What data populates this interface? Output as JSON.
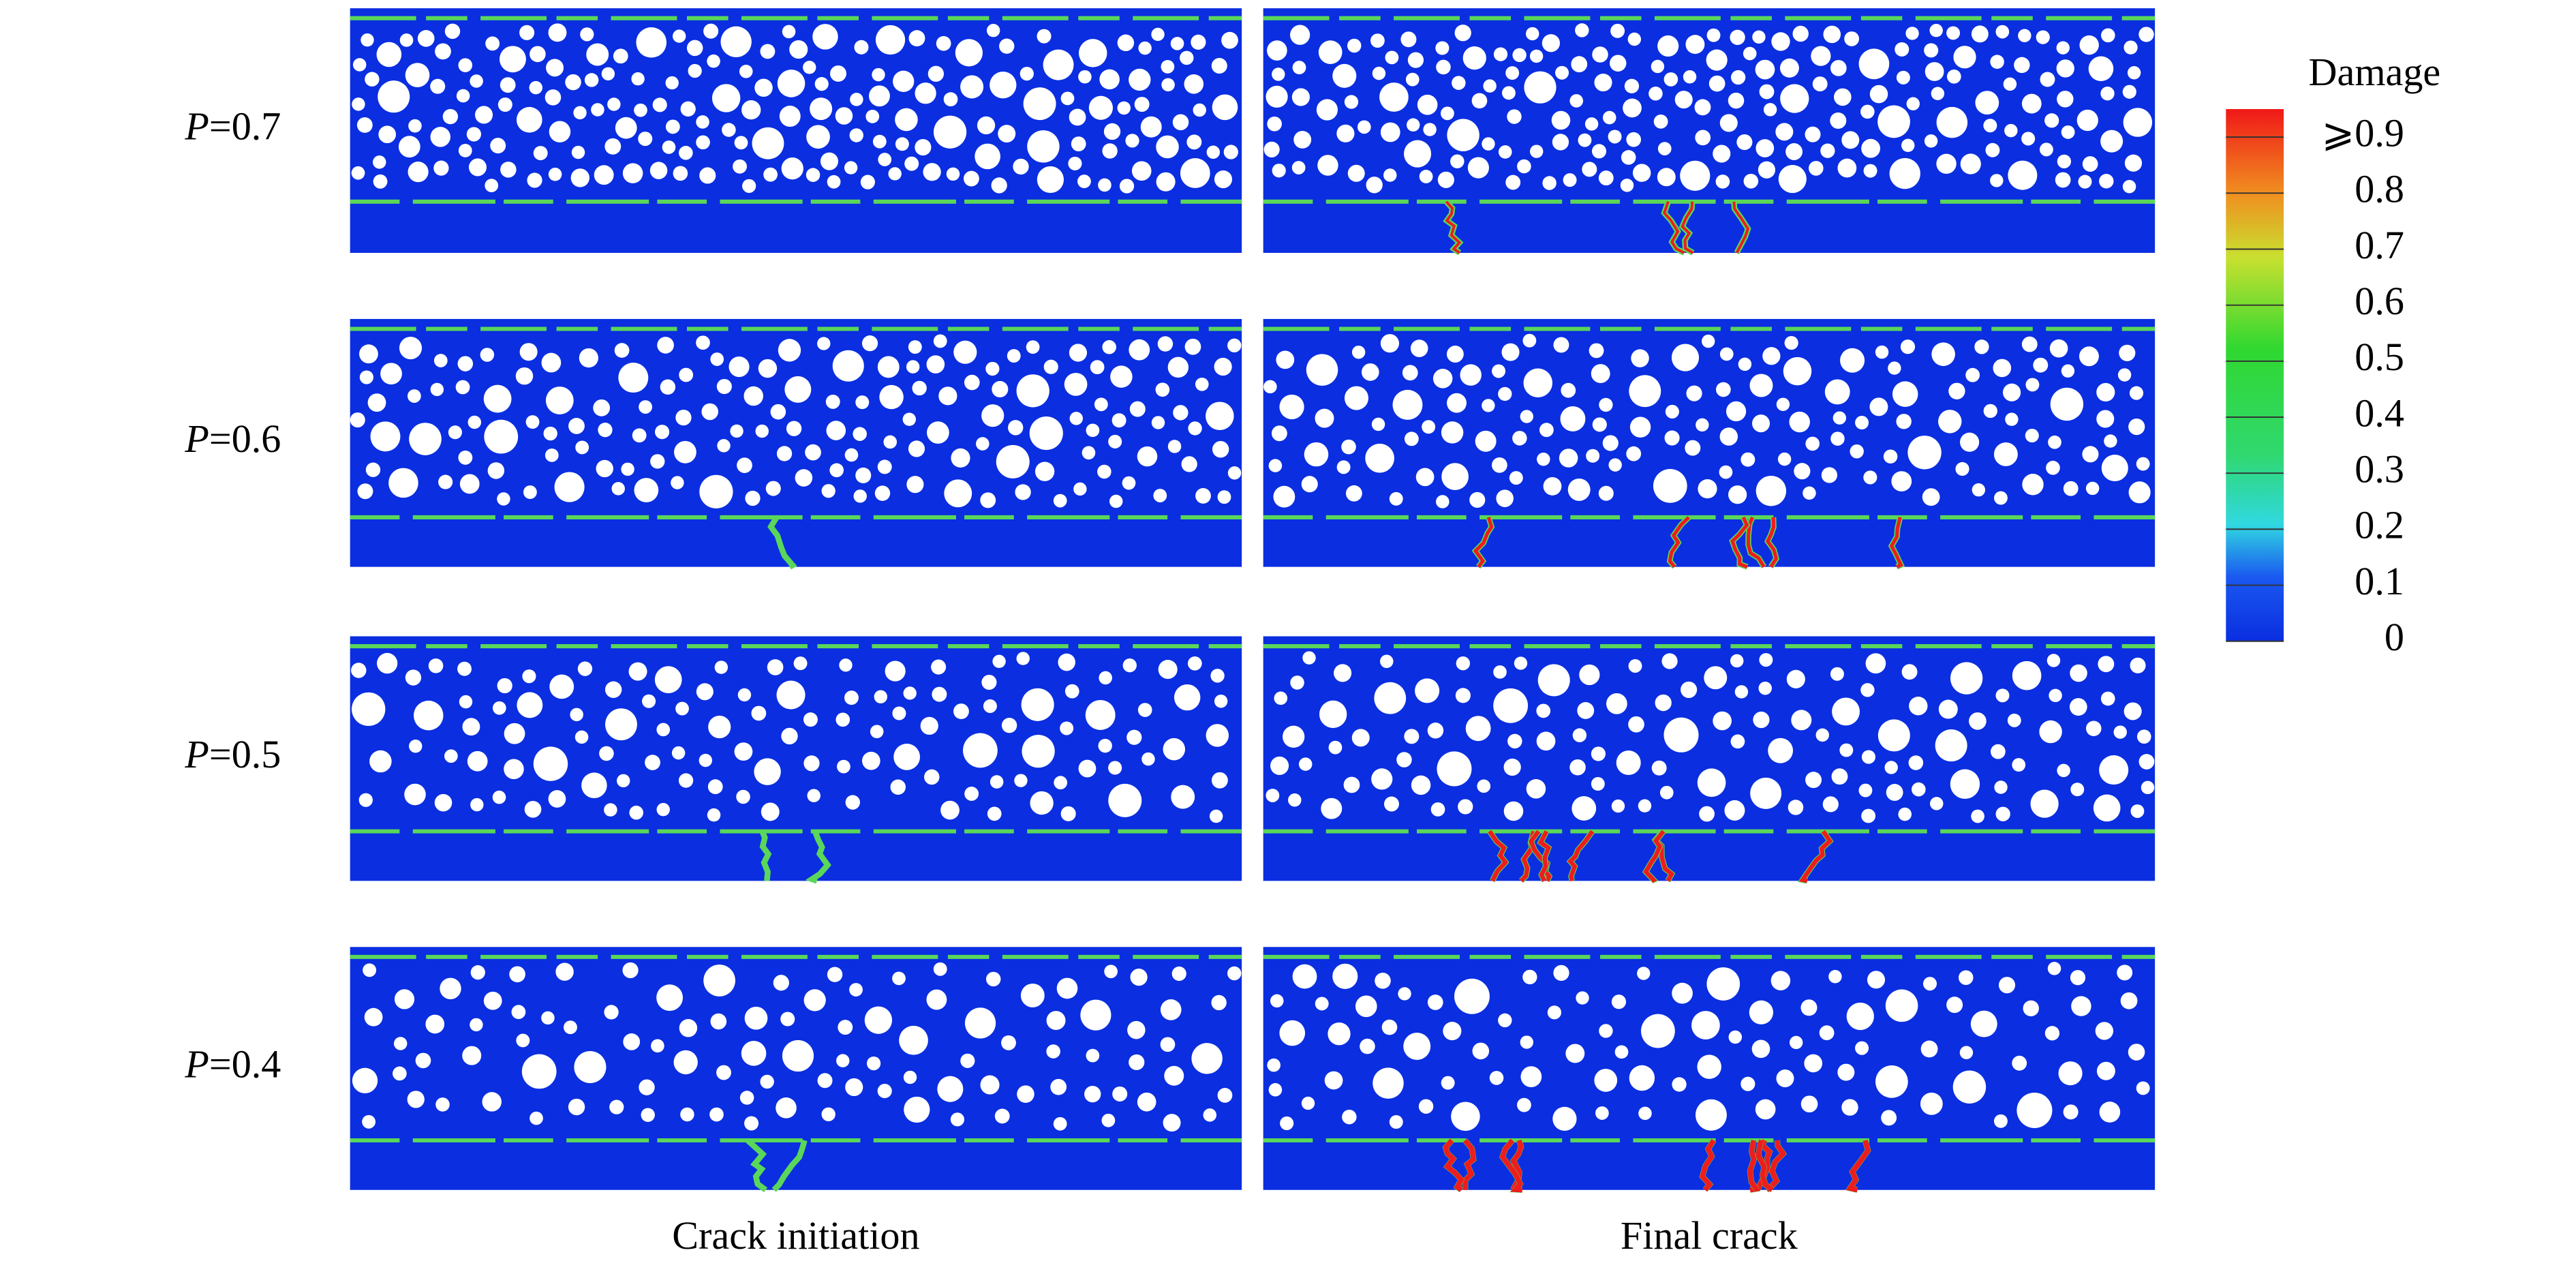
{
  "figure": {
    "rows": [
      {
        "symbol": "P",
        "value": "=0.7"
      },
      {
        "symbol": "P",
        "value": "=0.6"
      },
      {
        "symbol": "P",
        "value": "=0.5"
      },
      {
        "symbol": "P",
        "value": "=0.4"
      }
    ],
    "columns": [
      "Crack initiation",
      "Final crack"
    ],
    "colorbar": {
      "title": "Damage",
      "clim": [
        0,
        0.95
      ],
      "ticks": [
        {
          "value": 0.9,
          "label": "⩾0.9"
        },
        0.8,
        0.7,
        0.6,
        0.5,
        0.4,
        0.3,
        0.2,
        0.1,
        0
      ]
    }
  }
}
